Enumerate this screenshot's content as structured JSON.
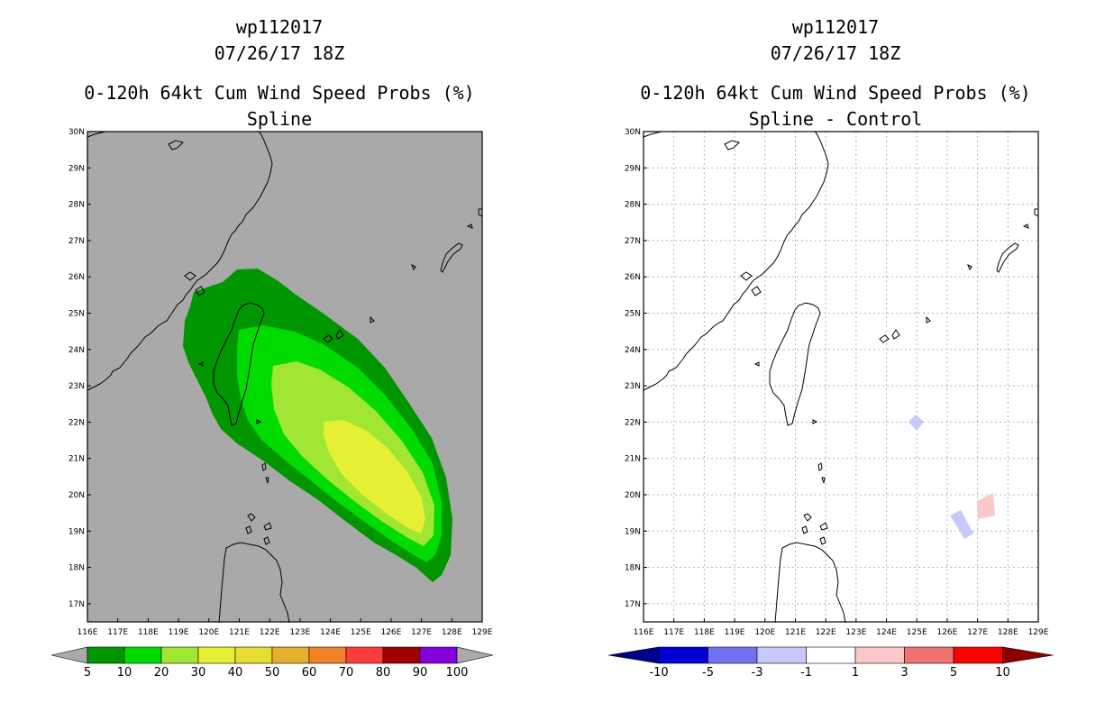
{
  "left_panel": {
    "storm_id": "wp112017",
    "datetime": "07/26/17 18Z",
    "product": "0-120h 64kt Cum Wind Speed Probs (%)",
    "subtitle": "Spline",
    "background_color": "#a9a9a9",
    "colorbar": {
      "labels": [
        "5",
        "10",
        "20",
        "30",
        "40",
        "50",
        "60",
        "70",
        "80",
        "90",
        "100"
      ],
      "colors": [
        "#009600",
        "#00dc00",
        "#a0e632",
        "#e6f032",
        "#e6dc32",
        "#e6af2d",
        "#f08228",
        "#fa3c3c",
        "#a00000",
        "#8200dc"
      ],
      "end_color": "#a9a9a9"
    }
  },
  "right_panel": {
    "storm_id": "wp112017",
    "datetime": "07/26/17 18Z",
    "product": "0-120h 64kt Cum Wind Speed Probs (%)",
    "subtitle": "Spline - Control",
    "background_color": "#ffffff",
    "colorbar": {
      "labels": [
        "-10",
        "-5",
        "-3",
        "-1",
        "1",
        "3",
        "5",
        "10"
      ],
      "colors": [
        "#0000d2",
        "#7272f0",
        "#c8c8fa",
        "#ffffff",
        "#fac8c8",
        "#f07272",
        "#ff0000"
      ],
      "left_end_color": "#00008c",
      "right_end_color": "#8c0000"
    }
  },
  "map": {
    "lon_labels": [
      "116E",
      "117E",
      "118E",
      "119E",
      "120E",
      "121E",
      "122E",
      "123E",
      "124E",
      "125E",
      "126E",
      "127E",
      "128E",
      "129E"
    ],
    "lat_labels": [
      "30N",
      "29N",
      "28N",
      "27N",
      "26N",
      "25N",
      "24N",
      "23N",
      "22N",
      "21N",
      "20N",
      "19N",
      "18N",
      "17N"
    ],
    "lon_range": [
      116,
      129
    ],
    "lat_range": [
      16.5,
      30
    ]
  }
}
